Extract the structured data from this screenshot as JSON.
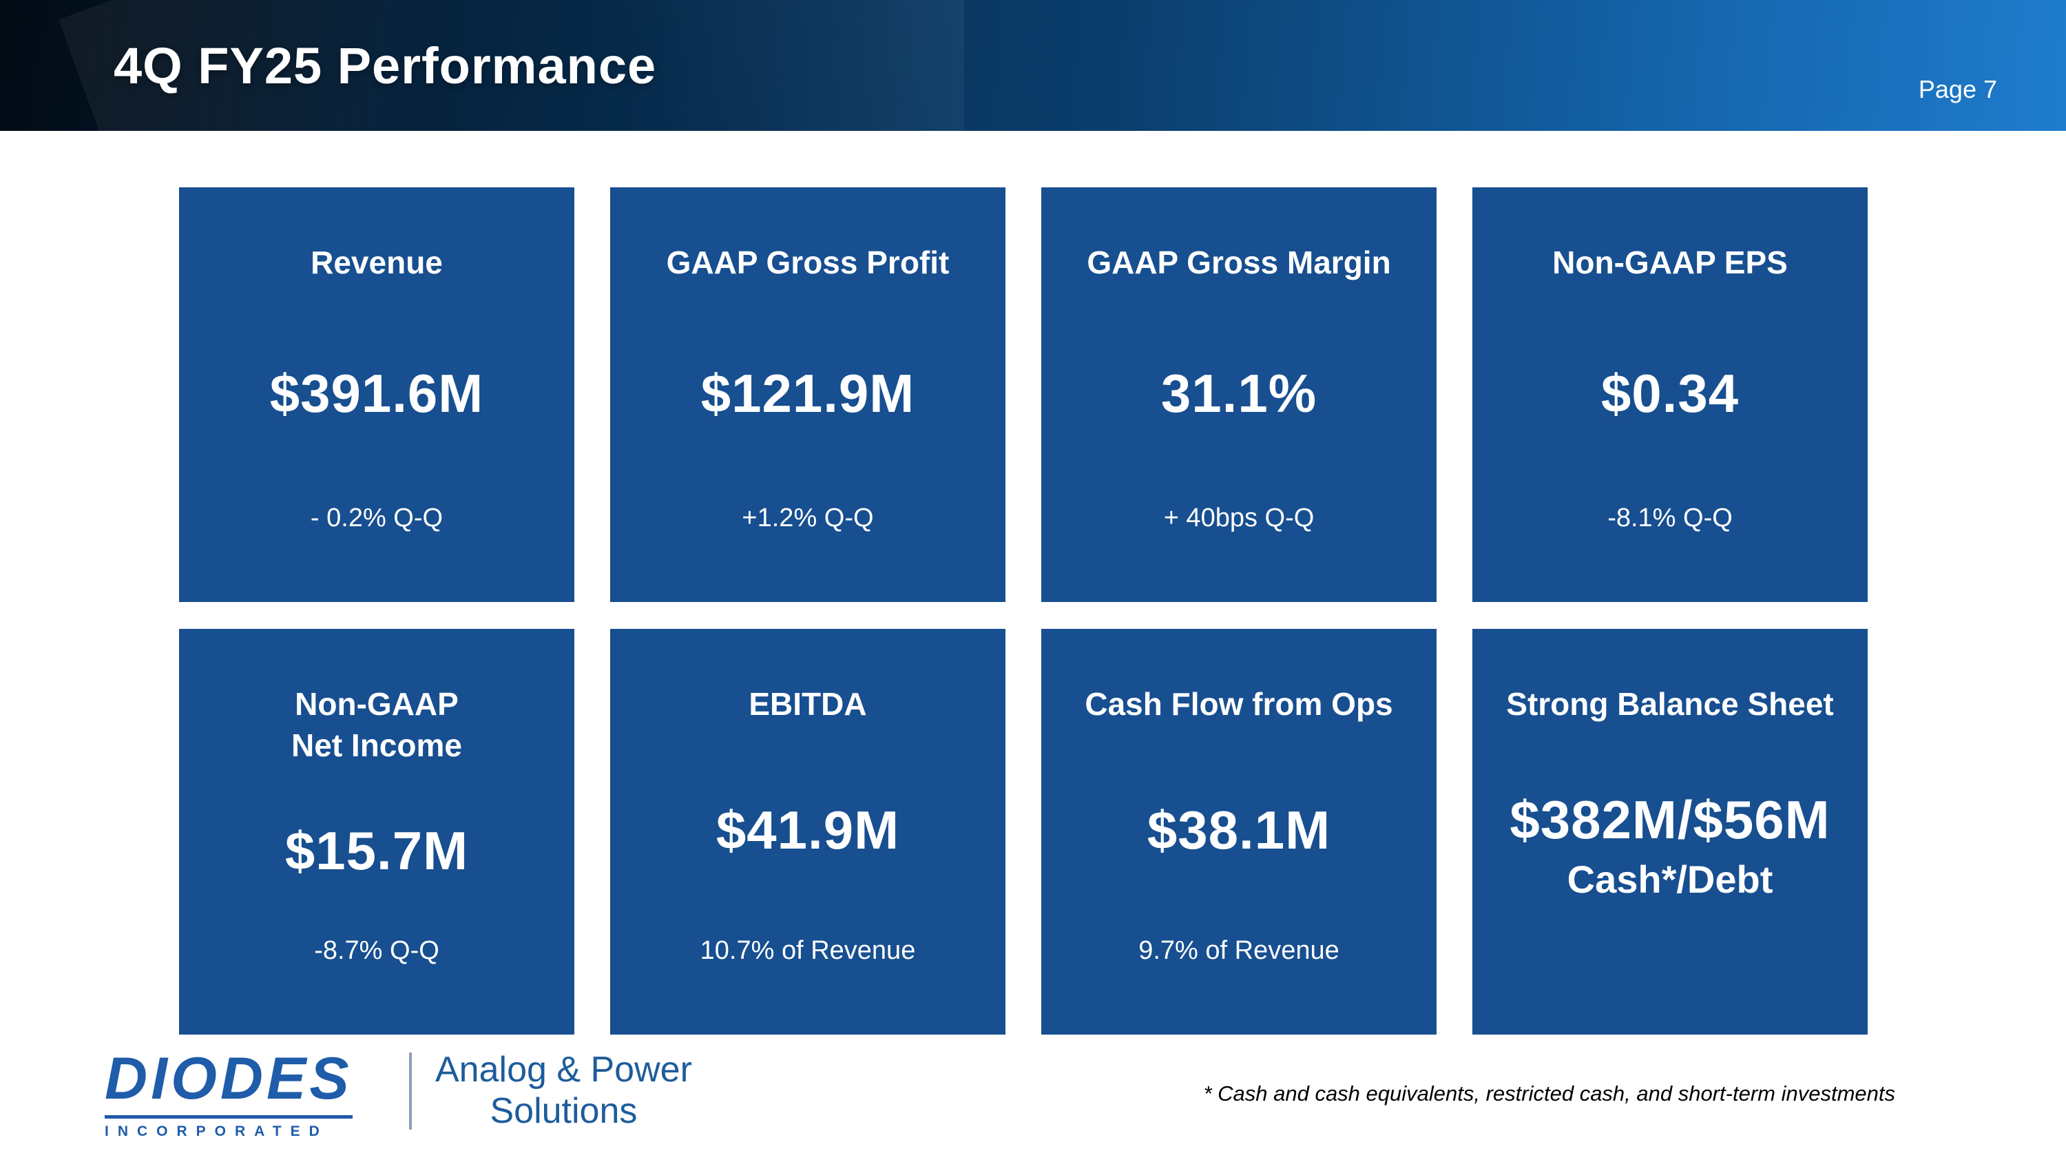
{
  "header": {
    "title": "4Q FY25 Performance",
    "page_number": "Page 7"
  },
  "cards": [
    {
      "title": "Revenue",
      "value": "$391.6M",
      "value2": "",
      "sub": "- 0.2% Q-Q"
    },
    {
      "title": "GAAP Gross Profit",
      "value": "$121.9M",
      "value2": "",
      "sub": "+1.2% Q-Q"
    },
    {
      "title": "GAAP Gross Margin",
      "value": "31.1%",
      "value2": "",
      "sub": "+ 40bps Q-Q"
    },
    {
      "title": "Non-GAAP EPS",
      "value": "$0.34",
      "value2": "",
      "sub": "-8.1% Q-Q"
    },
    {
      "title": "Non-GAAP\nNet Income",
      "value": "$15.7M",
      "value2": "",
      "sub": "-8.7% Q-Q"
    },
    {
      "title": "EBITDA",
      "value": "$41.9M",
      "value2": "",
      "sub": "10.7% of Revenue"
    },
    {
      "title": "Cash Flow from Ops",
      "value": "$38.1M",
      "value2": "",
      "sub": "9.7% of Revenue"
    },
    {
      "title": "Strong Balance Sheet",
      "value": "$382M/$56M",
      "value2": "Cash*/Debt",
      "sub": ""
    }
  ],
  "footer": {
    "logo_word": "DIODES",
    "logo_sub": "INCORPORATED",
    "tagline_line1": "Analog & Power",
    "tagline_line2": "Solutions",
    "footnote": "* Cash and cash equivalents, restricted cash, and short-term investments"
  },
  "colors": {
    "card_blue": "#174f90",
    "header_dark": "#03101f",
    "header_light": "#1f7ccd",
    "logo_blue": "#1f5ca9",
    "text_on_card": "#ffffff"
  }
}
